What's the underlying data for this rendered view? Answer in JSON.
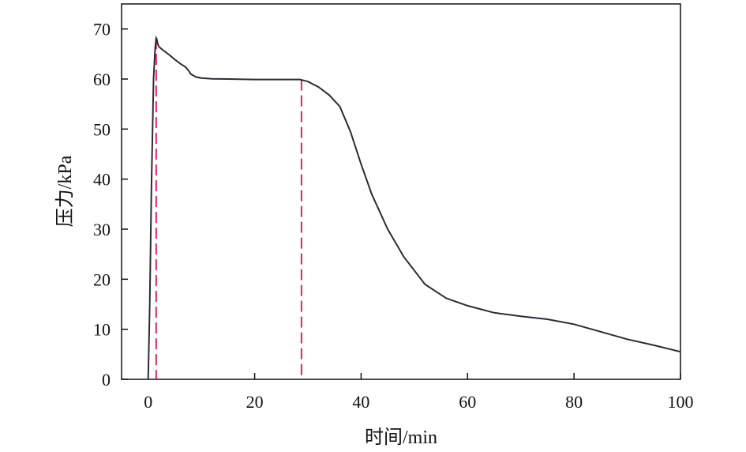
{
  "chart_data": {
    "type": "line",
    "xlabel": "时间/min",
    "ylabel": "压力/kPa",
    "xlim": [
      -5,
      100
    ],
    "ylim": [
      0,
      75
    ],
    "xticks": [
      0,
      20,
      40,
      60,
      80,
      100
    ],
    "yticks": [
      0,
      10,
      20,
      30,
      40,
      50,
      60,
      70
    ],
    "grid": false,
    "legend": "none",
    "colors": {
      "line": "#2b2b36",
      "marker_line": "#e0245e"
    },
    "series": [
      {
        "x": [
          0,
          0.3,
          0.6,
          1.0,
          1.3,
          1.5,
          1.6,
          1.8,
          2.0,
          2.5,
          3.0,
          4.0,
          5.0,
          6.0,
          7.0,
          7.5,
          8.0,
          9.0,
          10.0,
          12.0,
          15.0,
          20.0,
          25.0,
          28.5,
          30.0,
          32.0,
          34.0,
          36.0,
          38.0,
          40.0,
          42.0,
          45.0,
          48.0,
          52.0,
          56.0,
          60.0,
          65.0,
          70.0,
          75.0,
          80.0,
          85.0,
          90.0,
          95.0,
          100.0
        ],
        "values": [
          0,
          15,
          38,
          60,
          66,
          68.2,
          68,
          67,
          66.5,
          66,
          65.6,
          64.8,
          63.9,
          63.1,
          62.4,
          61.8,
          61.0,
          60.4,
          60.2,
          60.05,
          60.0,
          59.9,
          59.9,
          59.9,
          59.5,
          58.4,
          56.8,
          54.5,
          49.5,
          43.0,
          37.0,
          30.0,
          24.5,
          19.0,
          16.2,
          14.7,
          13.3,
          12.6,
          12.0,
          11.0,
          9.5,
          8.0,
          6.8,
          5.5
        ]
      }
    ],
    "annotations": [
      {
        "type": "vertical-dashed-line",
        "x": 1.5,
        "y_top": 68.2
      },
      {
        "type": "vertical-dashed-line",
        "x": 28.8,
        "y_top": 59.9
      }
    ]
  }
}
